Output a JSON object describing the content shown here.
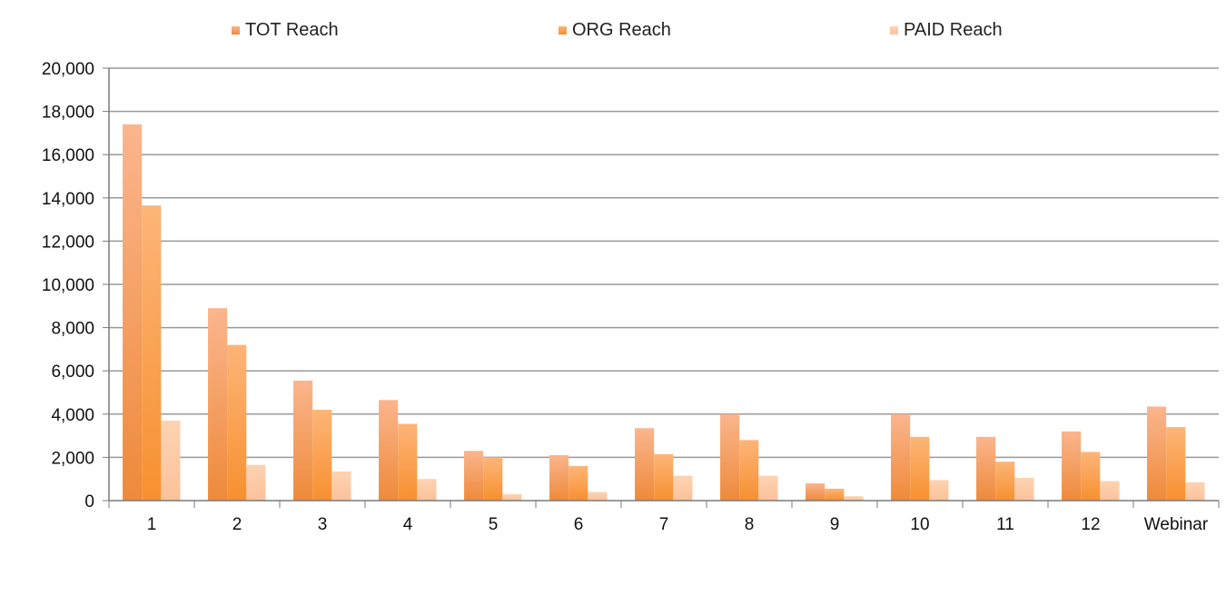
{
  "chart_data": {
    "type": "bar",
    "title": "",
    "xlabel": "",
    "ylabel": "",
    "ylim": [
      0,
      20000
    ],
    "yticks": [
      0,
      2000,
      4000,
      6000,
      8000,
      10000,
      12000,
      14000,
      16000,
      18000,
      20000
    ],
    "ytick_labels": [
      "0",
      "2,000",
      "4,000",
      "6,000",
      "8,000",
      "10,000",
      "12,000",
      "14,000",
      "16,000",
      "18,000",
      "20,000"
    ],
    "grid": true,
    "legend_position": "top",
    "categories": [
      "1",
      "2",
      "3",
      "4",
      "5",
      "6",
      "7",
      "8",
      "9",
      "10",
      "11",
      "12",
      "Webinar"
    ],
    "series": [
      {
        "name": "TOT Reach",
        "color": "#f4a56e",
        "values": [
          17400,
          8900,
          5550,
          4650,
          2300,
          2100,
          3350,
          4000,
          800,
          4000,
          2950,
          3200,
          4350
        ]
      },
      {
        "name": "ORG Reach",
        "color": "#f9a24e",
        "values": [
          13650,
          7200,
          4200,
          3550,
          2000,
          1600,
          2150,
          2800,
          550,
          2950,
          1800,
          2250,
          3400
        ]
      },
      {
        "name": "PAID Reach",
        "color": "#fcc8a0",
        "values": [
          3700,
          1650,
          1350,
          1000,
          300,
          400,
          1150,
          1150,
          200,
          950,
          1050,
          900,
          850
        ]
      }
    ]
  }
}
